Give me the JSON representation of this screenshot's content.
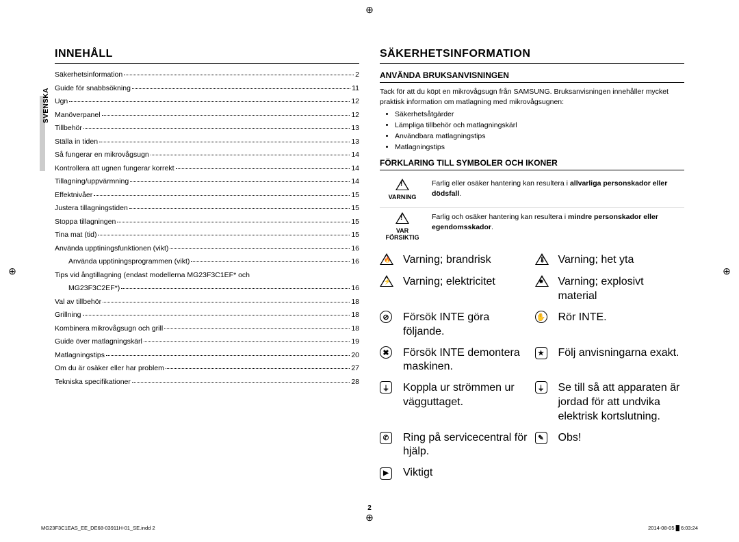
{
  "side_label": "SVENSKA",
  "page_number": "2",
  "footer_left": "MG23F3C1EAS_EE_DE68-03911H-01_SE.indd   2",
  "footer_right": "2014-08-05   █ 6:03:24",
  "left": {
    "heading": "INNEHÅLL",
    "toc": [
      {
        "t": "Säkerhetsinformation",
        "p": "2",
        "indent": 0
      },
      {
        "t": "Guide för snabbsökning",
        "p": "11",
        "indent": 0
      },
      {
        "t": "Ugn",
        "p": "12",
        "indent": 0
      },
      {
        "t": "Manöverpanel",
        "p": "12",
        "indent": 0
      },
      {
        "t": "Tillbehör",
        "p": "13",
        "indent": 0
      },
      {
        "t": "Ställa in tiden",
        "p": "13",
        "indent": 0
      },
      {
        "t": "Så fungerar en mikrovågsugn",
        "p": "14",
        "indent": 0
      },
      {
        "t": "Kontrollera att ugnen fungerar korrekt",
        "p": "14",
        "indent": 0
      },
      {
        "t": "Tillagning/uppvärmning",
        "p": "14",
        "indent": 0
      },
      {
        "t": "Effektnivåer",
        "p": "15",
        "indent": 0
      },
      {
        "t": "Justera tillagningstiden",
        "p": "15",
        "indent": 0
      },
      {
        "t": "Stoppa tillagningen",
        "p": "15",
        "indent": 0
      },
      {
        "t": "Tina mat (tid)",
        "p": "15",
        "indent": 0
      },
      {
        "t": "Använda upptiningsfunktionen (vikt)",
        "p": "16",
        "indent": 0
      },
      {
        "t": "Använda upptiningsprogrammen (vikt)",
        "p": "16",
        "indent": 1
      },
      {
        "t": "Tips vid ångtillagning (endast modellerna MG23F3C1EF* och MG23F3C2EF*)",
        "p": "16",
        "indent": 0,
        "wrap": true
      },
      {
        "t": "Val av tillbehör",
        "p": "18",
        "indent": 0
      },
      {
        "t": "Grillning",
        "p": "18",
        "indent": 0
      },
      {
        "t": "Kombinera mikrovågsugn och grill",
        "p": "18",
        "indent": 0
      },
      {
        "t": "Guide över matlagningskärl",
        "p": "19",
        "indent": 0
      },
      {
        "t": "Matlagningstips",
        "p": "20",
        "indent": 0
      },
      {
        "t": "Om du är osäker eller har problem",
        "p": "27",
        "indent": 0
      },
      {
        "t": "Tekniska specifikationer",
        "p": "28",
        "indent": 0
      }
    ]
  },
  "right": {
    "heading": "SÄKERHETSINFORMATION",
    "sec1": {
      "title": "ANVÄNDA BRUKSANVISNINGEN",
      "intro": "Tack för att du köpt en mikrovågsugn från SAMSUNG. Bruksanvisningen innehåller mycket praktisk information om matlagning med mikrovågsugnen:",
      "bullets": [
        "Säkerhetsåtgärder",
        "Lämpliga tillbehör och matlagningskärl",
        "Användbara matlagningstips",
        "Matlagningstips"
      ]
    },
    "sec2": {
      "title": "FÖRKLARING TILL SYMBOLER OCH IKONER",
      "wide": [
        {
          "label": "VARNING",
          "pre": "Farlig eller osäker hantering kan resultera i ",
          "bold": "allvarliga personskador eller dödsfall",
          "post": "."
        },
        {
          "label": "VAR FÖRSIKTIG",
          "pre": "Farlig och osäker hantering kan resultera i ",
          "bold": "mindre personskador eller egendomsskador",
          "post": "."
        }
      ],
      "grid": [
        {
          "l_icon": "tri",
          "l_g": "🔥",
          "l_t": "Varning; brandrisk",
          "r_icon": "tri",
          "r_g": "🌡",
          "r_t": "Varning; het yta"
        },
        {
          "l_icon": "tri",
          "l_g": "⚡",
          "l_t": "Varning; elektricitet",
          "r_icon": "tri",
          "r_g": "✸",
          "r_t": "Varning; explosivt material"
        },
        {
          "l_icon": "circ",
          "l_g": "⊘",
          "l_t": "Försök INTE göra följande.",
          "r_icon": "circ",
          "r_g": "✋",
          "r_t": "Rör INTE."
        },
        {
          "l_icon": "circ",
          "l_g": "✖",
          "l_t": "Försök INTE demontera maskinen.",
          "r_icon": "sq",
          "r_g": "★",
          "r_t": "Följ anvisningarna exakt."
        },
        {
          "l_icon": "sq",
          "l_g": "⏚",
          "l_t": "Koppla ur strömmen ur vägguttaget.",
          "r_icon": "sq",
          "r_g": "⏚",
          "r_t": "Se till så att apparaten är jordad för att undvika elektrisk kortslutning."
        },
        {
          "l_icon": "sq",
          "l_g": "✆",
          "l_t": "Ring på servicecentral för hjälp.",
          "r_icon": "sq",
          "r_g": "✎",
          "r_t": "Obs!"
        },
        {
          "l_icon": "sq",
          "l_g": "▶",
          "l_t": "Viktigt",
          "r_icon": "",
          "r_g": "",
          "r_t": ""
        }
      ]
    }
  }
}
